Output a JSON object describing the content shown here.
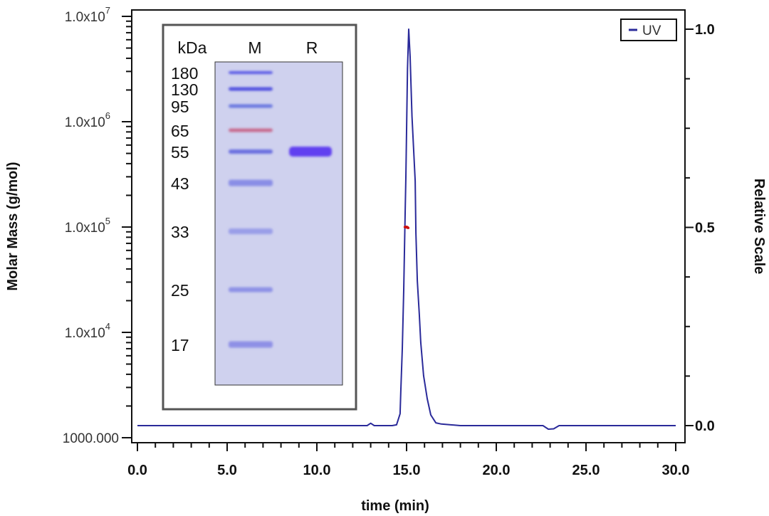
{
  "chart_data": {
    "type": "line",
    "xlabel": "time (min)",
    "ylabel_left": "Molar Mass (g/mol)",
    "ylabel_right": "Relative Scale",
    "xlim": [
      0,
      30
    ],
    "ylim_left": [
      1000,
      10000000
    ],
    "ylim_right": [
      0,
      1.0
    ],
    "yscale_left": "log",
    "x_ticks": [
      "0.0",
      "5.0",
      "10.0",
      "15.0",
      "20.0",
      "25.0",
      "30.0"
    ],
    "x_tick_values": [
      0,
      5,
      10,
      15,
      20,
      25,
      30
    ],
    "y_left_ticks": [
      {
        "value": 10000000,
        "base": "1.0x10",
        "exp": "7"
      },
      {
        "value": 1000000,
        "base": "1.0x10",
        "exp": "6"
      },
      {
        "value": 100000,
        "base": "1.0x10",
        "exp": "5"
      },
      {
        "value": 10000,
        "base": "1.0x10",
        "exp": "4"
      },
      {
        "value": 1000,
        "base": "1000.000",
        "exp": ""
      }
    ],
    "y_right_ticks": [
      {
        "value": 1.0,
        "label": "1.0"
      },
      {
        "value": 0.5,
        "label": "0.5"
      },
      {
        "value": 0.0,
        "label": "0.0"
      }
    ],
    "legend": {
      "position": "top-right",
      "entries": [
        "UV"
      ]
    },
    "series": [
      {
        "name": "UV",
        "axis": "right",
        "color": "#2a2a9a",
        "x": [
          0,
          12.8,
          13.0,
          13.2,
          14.2,
          14.44,
          14.64,
          14.68,
          14.76,
          14.84,
          14.92,
          14.96,
          15.05,
          15.12,
          15.2,
          15.3,
          15.48,
          15.52,
          15.6,
          15.71,
          15.79,
          15.95,
          16.15,
          16.35,
          16.63,
          16.94,
          18.0,
          22.6,
          22.9,
          23.2,
          23.5,
          30
        ],
        "y": [
          0.0,
          0.0,
          0.006,
          0.0,
          0.0,
          0.002,
          0.03,
          0.087,
          0.194,
          0.342,
          0.536,
          0.626,
          0.9,
          1.0,
          0.93,
          0.78,
          0.617,
          0.486,
          0.365,
          0.28,
          0.21,
          0.126,
          0.068,
          0.027,
          0.007,
          0.004,
          0.0,
          0.0,
          -0.009,
          -0.008,
          0.0,
          0.0
        ]
      },
      {
        "name": "Molar Mass",
        "axis": "left",
        "color": "#cc1111",
        "x": [
          14.9,
          14.95,
          15.0,
          15.05,
          15.1
        ],
        "y": [
          100000,
          100000,
          100000,
          99000,
          98000
        ]
      }
    ],
    "inset_gel": {
      "header_units": "kDa",
      "lanes": [
        "M",
        "R"
      ],
      "markers": [
        {
          "label": "180",
          "color": "#5a5ae6"
        },
        {
          "label": "130",
          "color": "#5050e0"
        },
        {
          "label": "95",
          "color": "#6a78e0"
        },
        {
          "label": "65",
          "color": "#c86a8e"
        },
        {
          "label": "55",
          "color": "#6a70e0"
        },
        {
          "label": "43",
          "color": "#8a8ee6"
        },
        {
          "label": "33",
          "color": "#9a9ee8"
        },
        {
          "label": "25",
          "color": "#8e92e6"
        },
        {
          "label": "17",
          "color": "#8e90e6"
        }
      ],
      "sample_band": {
        "lane": "R",
        "marker": "55",
        "color": "#6040f0"
      },
      "gel_color": "#cfd1ee"
    }
  }
}
